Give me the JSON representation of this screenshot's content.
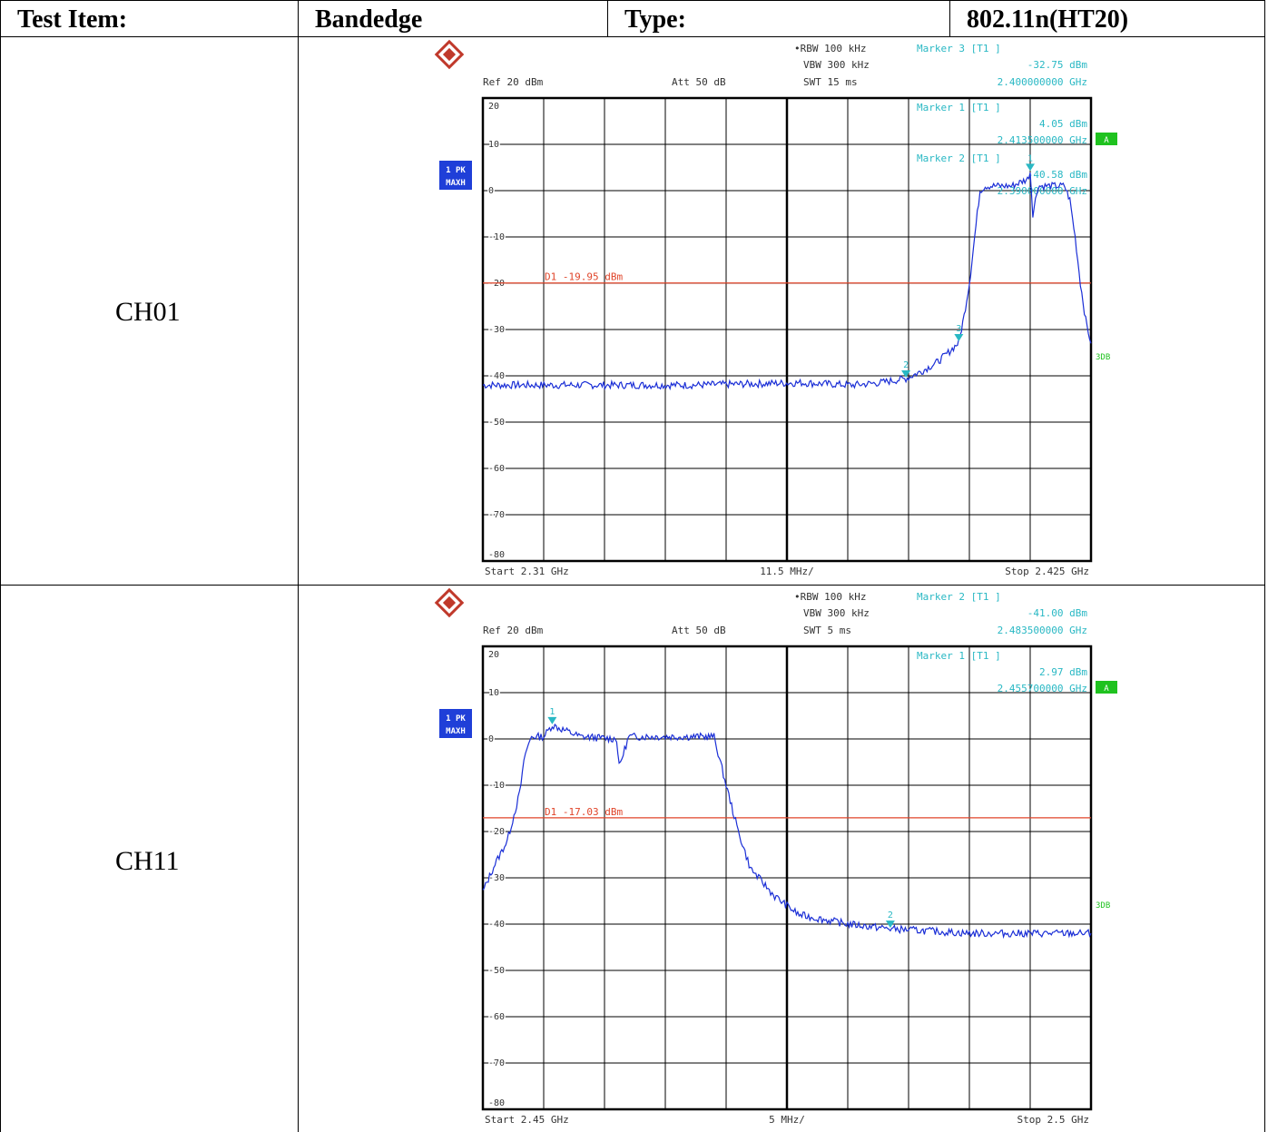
{
  "header": {
    "test_item_label": "Test Item:",
    "test_item_value": "Bandedge",
    "type_label": "Type:",
    "type_value": "802.11n(HT20)"
  },
  "colors": {
    "trace": "#1a2ed6",
    "display_line": "#e0452a",
    "annotation": "#29b8c4",
    "grid": "#000000",
    "badge": "#1f3fd8",
    "marker_badge": "#1fc21f"
  },
  "chart_data": [
    {
      "type": "line",
      "channel_label": "CH01",
      "rbw": "RBW 100 kHz",
      "vbw": "VBW 300 kHz",
      "swt": "SWT 15 ms",
      "ref": "Ref  20 dBm",
      "att": "Att  50 dB",
      "header_marker": {
        "title": "Marker 3 [T1 ]",
        "level": "-32.75 dBm",
        "freq": "2.400000000 GHz"
      },
      "inner_markers": [
        {
          "title": "Marker 1 [T1 ]",
          "level": "4.05 dBm",
          "freq": "2.413500000 GHz"
        },
        {
          "title": "Marker 2 [T1 ]",
          "level": "-40.58 dBm",
          "freq": "2.390000000 GHz"
        }
      ],
      "trace_label": "1 PK",
      "trace_mode": "MAXH",
      "badge_a": "A",
      "side_label": "3DB",
      "display_line": {
        "label": "D1 -19.95 dBm",
        "value": -19.95
      },
      "start_label": "Start 2.31 GHz",
      "div_label": "11.5 MHz/",
      "stop_label": "Stop 2.425 GHz",
      "xlim": [
        2.31,
        2.425
      ],
      "ylim": [
        -80,
        20
      ],
      "yticks": [
        "20",
        "10",
        "0",
        "-10",
        "-20",
        "-30",
        "-40",
        "-50",
        "-60",
        "-70",
        "-80"
      ],
      "markers": [
        {
          "id": "1",
          "x": 2.4135,
          "y": 4.05
        },
        {
          "id": "2",
          "x": 2.39,
          "y": -40.58
        },
        {
          "id": "3",
          "x": 2.4,
          "y": -32.75
        }
      ],
      "x": [
        2.31,
        2.33,
        2.35,
        2.37,
        2.38,
        2.385,
        2.39,
        2.393,
        2.396,
        2.398,
        2.4,
        2.401,
        2.402,
        2.403,
        2.404,
        2.405,
        2.41,
        2.413,
        2.4135,
        2.414,
        2.415,
        2.42,
        2.421,
        2.422,
        2.423,
        2.424,
        2.425
      ],
      "values": [
        -42,
        -42,
        -42,
        -41.5,
        -42,
        -41.5,
        -40.6,
        -39,
        -37,
        -35,
        -32.8,
        -27,
        -20,
        -10,
        0,
        1,
        1,
        2.5,
        4.05,
        -5,
        1,
        1,
        -2,
        -10,
        -20,
        -28,
        -33
      ]
    },
    {
      "type": "line",
      "channel_label": "CH11",
      "rbw": "RBW 100 kHz",
      "vbw": "VBW 300 kHz",
      "swt": "SWT 5 ms",
      "ref": "Ref  20 dBm",
      "att": "Att  50 dB",
      "header_marker": {
        "title": "Marker 2 [T1 ]",
        "level": "-41.00 dBm",
        "freq": "2.483500000 GHz"
      },
      "inner_markers": [
        {
          "title": "Marker 1 [T1 ]",
          "level": "2.97 dBm",
          "freq": "2.455700000 GHz"
        }
      ],
      "trace_label": "1 PK",
      "trace_mode": "MAXH",
      "badge_a": "A",
      "side_label": "3DB",
      "display_line": {
        "label": "D1 -17.03 dBm",
        "value": -17.03
      },
      "start_label": "Start 2.45 GHz",
      "div_label": "5 MHz/",
      "stop_label": "Stop 2.5 GHz",
      "xlim": [
        2.45,
        2.5
      ],
      "ylim": [
        -80,
        20
      ],
      "yticks": [
        "20",
        "10",
        "0",
        "-10",
        "-20",
        "-30",
        "-40",
        "-50",
        "-60",
        "-70",
        "-80"
      ],
      "markers": [
        {
          "id": "1",
          "x": 2.4557,
          "y": 2.97
        },
        {
          "id": "2",
          "x": 2.4835,
          "y": -41.0
        }
      ],
      "x": [
        2.45,
        2.451,
        2.452,
        2.453,
        2.4535,
        2.454,
        2.455,
        2.4557,
        2.458,
        2.461,
        2.4612,
        2.462,
        2.465,
        2.469,
        2.47,
        2.471,
        2.472,
        2.474,
        2.476,
        2.48,
        2.4835,
        2.49,
        2.5
      ],
      "values": [
        -33,
        -27,
        -22,
        -12,
        -3,
        0.5,
        0.5,
        2.97,
        0.5,
        0,
        -6,
        0.5,
        0.5,
        0.5,
        -10,
        -20,
        -28,
        -34,
        -38,
        -40,
        -41,
        -42,
        -42
      ]
    }
  ]
}
